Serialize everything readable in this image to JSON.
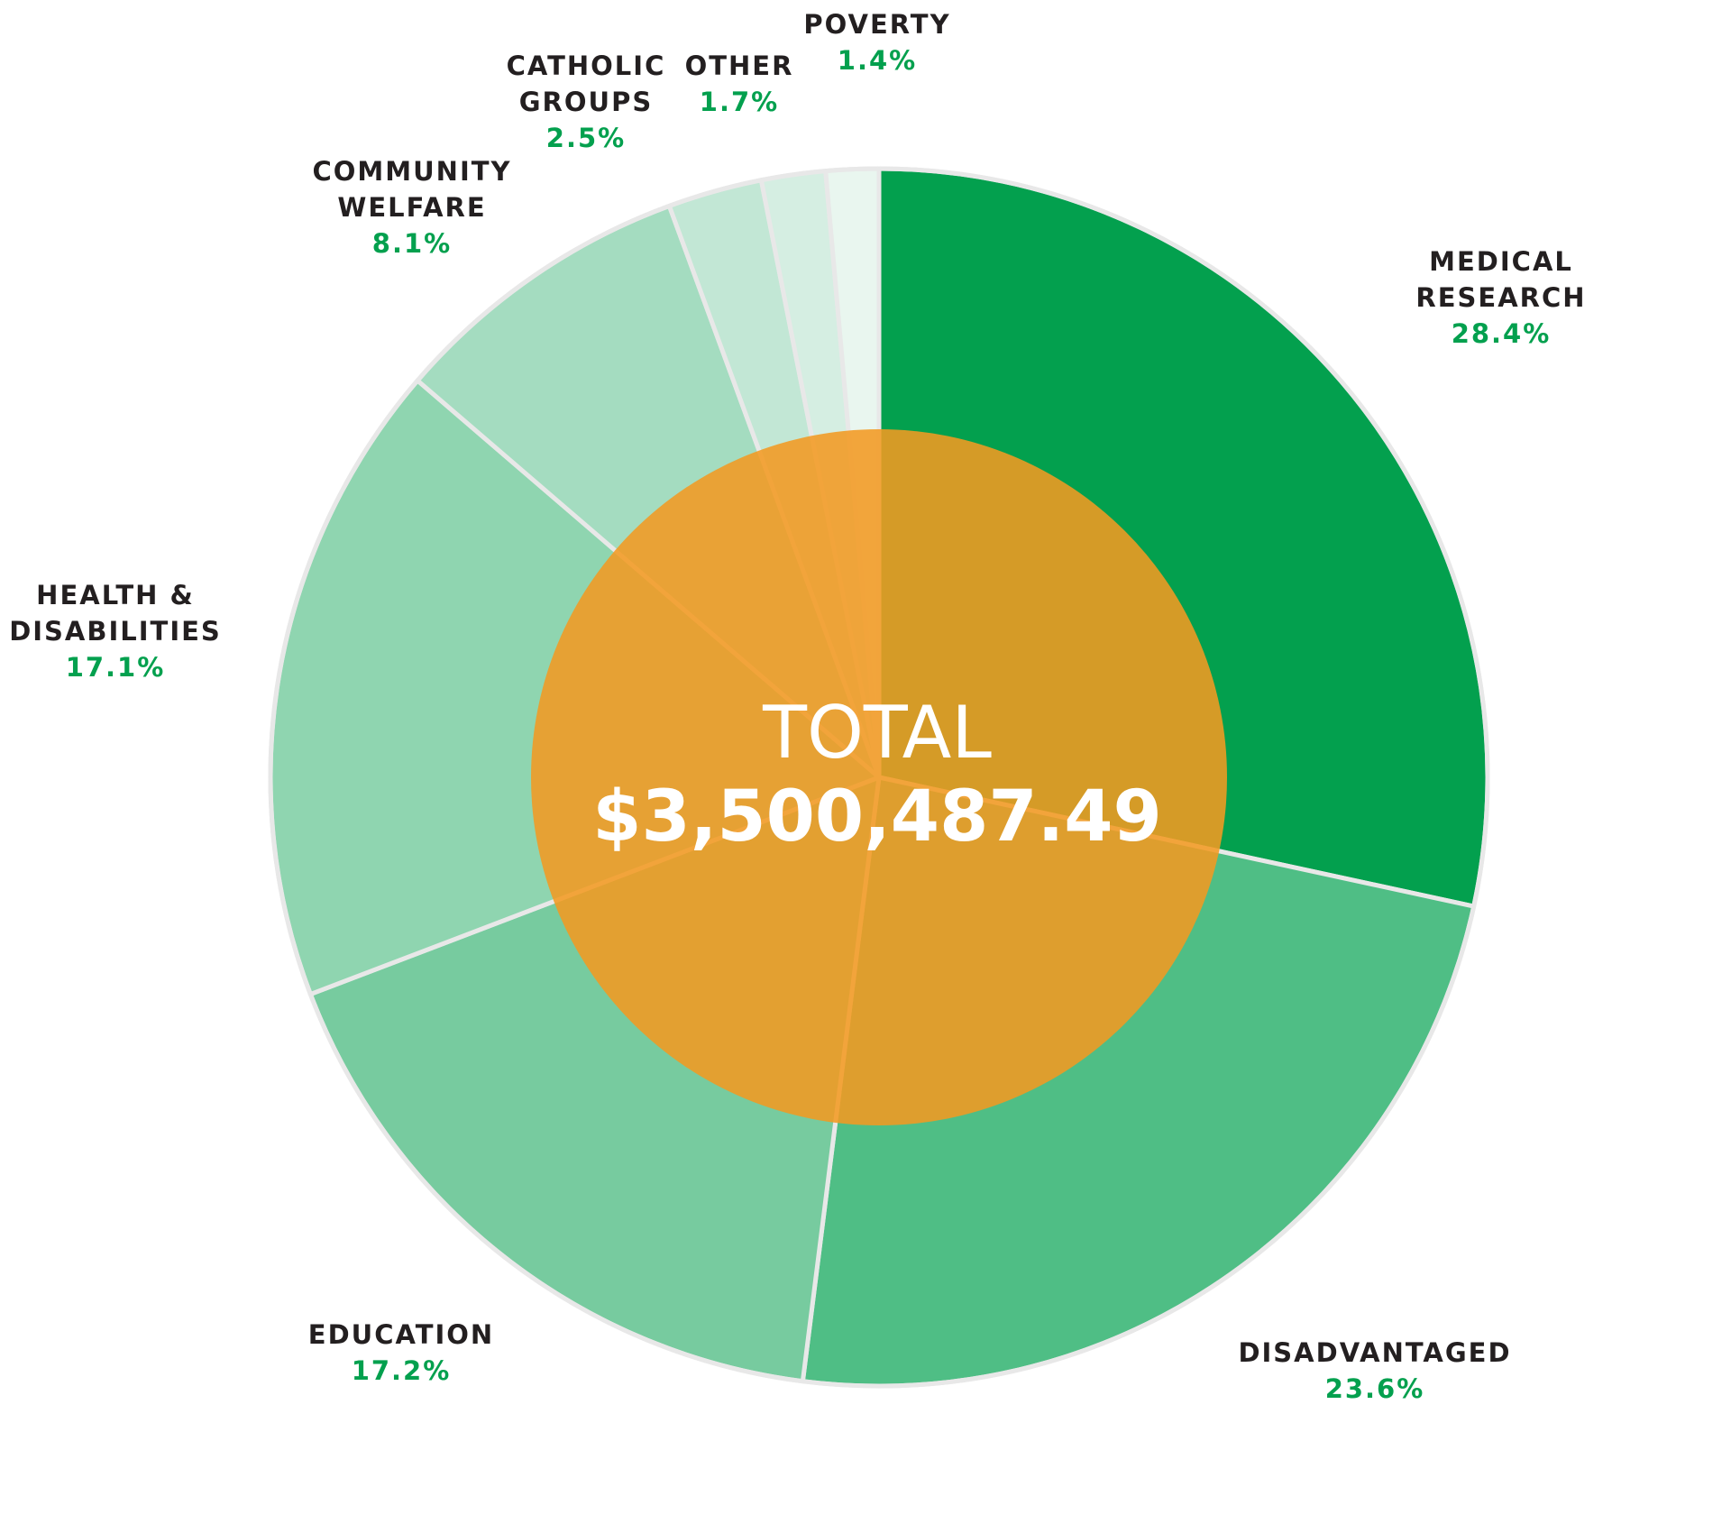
{
  "chart_data": {
    "type": "pie",
    "title": "",
    "center": {
      "title": "TOTAL",
      "value": "$3,500,487.49"
    },
    "slices": [
      {
        "label_lines": [
          "MEDICAL",
          "RESEARCH"
        ],
        "value": 28.4,
        "pct_text": "28.4%",
        "color": "#03a04e"
      },
      {
        "label_lines": [
          "DISADVANTAGED"
        ],
        "value": 23.6,
        "pct_text": "23.6%",
        "color": "#4fbe85"
      },
      {
        "label_lines": [
          "EDUCATION"
        ],
        "value": 17.2,
        "pct_text": "17.2%",
        "color": "#77cb9f"
      },
      {
        "label_lines": [
          "HEALTH &",
          "DISABILITIES"
        ],
        "value": 17.1,
        "pct_text": "17.1%",
        "color": "#8fd5b0"
      },
      {
        "label_lines": [
          "COMMUNITY",
          "WELFARE"
        ],
        "value": 8.1,
        "pct_text": "8.1%",
        "color": "#a4dcc0"
      },
      {
        "label_lines": [
          "CATHOLIC",
          "GROUPS"
        ],
        "value": 2.5,
        "pct_text": "2.5%",
        "color": "#c2e7d5"
      },
      {
        "label_lines": [
          "OTHER"
        ],
        "value": 1.7,
        "pct_text": "1.7%",
        "color": "#d5eee2"
      },
      {
        "label_lines": [
          "POVERTY"
        ],
        "value": 1.4,
        "pct_text": "1.4%",
        "color": "#e9f6ef"
      }
    ],
    "colors": {
      "label_text": "#231f20",
      "pct_text": "#03a04e",
      "center_overlay": "#f29a22",
      "separator": "#e8e8e8",
      "center_text": "#ffffff"
    }
  }
}
